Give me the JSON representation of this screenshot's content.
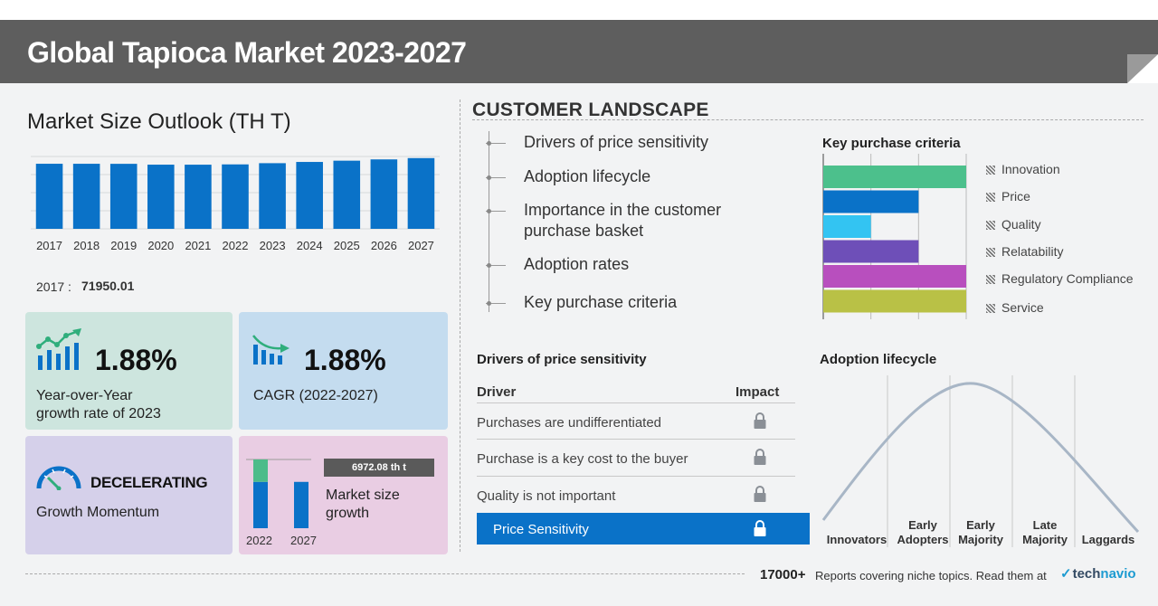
{
  "header": {
    "title": "Global Tapioca Market 2023-2027"
  },
  "market_size": {
    "title": "Market Size Outlook (TH T)",
    "base_year_label": "2017 :",
    "base_year_value": "71950.01"
  },
  "chart_data": [
    {
      "type": "bar",
      "title": "Market Size Outlook (TH T)",
      "categories": [
        "2017",
        "2018",
        "2019",
        "2020",
        "2021",
        "2022",
        "2023",
        "2024",
        "2025",
        "2026",
        "2027"
      ],
      "values": [
        71950.01,
        71930,
        71870,
        70950,
        70920,
        71250,
        72590,
        73960,
        75350,
        76770,
        78220
      ],
      "ylim": [
        0,
        80000
      ],
      "grid": true,
      "color": "#0a72c8"
    },
    {
      "type": "bar",
      "title": "Key purchase criteria",
      "orientation": "horizontal",
      "categories": [
        "Innovation",
        "Price",
        "Quality",
        "Relatability",
        "Regulatory Compliance",
        "Service"
      ],
      "values": [
        3,
        2,
        1,
        2,
        3,
        3
      ],
      "xlim": [
        0,
        3
      ],
      "colors": [
        "#4cc08c",
        "#0a72c8",
        "#33c4f2",
        "#6e4fb8",
        "#b84fbe",
        "#b9c146"
      ],
      "legend_position": "right"
    },
    {
      "type": "bar",
      "title": "Market size growth",
      "categories": [
        "2022",
        "2027"
      ],
      "values": [
        71250,
        78220
      ],
      "incremental_label": "6972.08 th t"
    }
  ],
  "kpis": {
    "yoy": {
      "value": "1.88%",
      "label_line1": "Year-over-Year",
      "label_line2": "growth rate of 2023"
    },
    "cagr": {
      "value": "1.88%",
      "label": "CAGR (2022-2027)"
    },
    "momentum": {
      "value": "DECELERATING",
      "label": "Growth Momentum"
    },
    "growth": {
      "badge": "6972.08 th t",
      "label_line1": "Market size",
      "label_line2": "growth",
      "year_start": "2022",
      "year_end": "2027"
    }
  },
  "customer_landscape": {
    "title": "CUSTOMER LANDSCAPE",
    "items": [
      {
        "line1": "Drivers of price sensitivity",
        "line2": ""
      },
      {
        "line1": "Adoption lifecycle",
        "line2": ""
      },
      {
        "line1": "Importance in the customer",
        "line2": "purchase basket"
      },
      {
        "line1": "Adoption rates",
        "line2": ""
      },
      {
        "line1": "Key purchase criteria",
        "line2": ""
      }
    ]
  },
  "key_purchase_criteria": {
    "title": "Key purchase criteria",
    "legend": [
      "Innovation",
      "Price",
      "Quality",
      "Relatability",
      "Regulatory Compliance",
      "Service"
    ]
  },
  "drivers": {
    "title": "Drivers of price sensitivity",
    "col_driver": "Driver",
    "col_impact": "Impact",
    "rows": [
      "Purchases are undifferentiated",
      "Purchase is a key cost to the buyer",
      "Quality is not important"
    ],
    "selected": "Price Sensitivity"
  },
  "adoption": {
    "title": "Adoption lifecycle",
    "stages": [
      {
        "line1": "",
        "line2": "Innovators"
      },
      {
        "line1": "Early",
        "line2": "Adopters"
      },
      {
        "line1": "Early",
        "line2": "Majority"
      },
      {
        "line1": "Late",
        "line2": "Majority"
      },
      {
        "line1": "",
        "line2": "Laggards"
      }
    ]
  },
  "footer": {
    "count": "17000+",
    "text": "Reports covering niche topics. Read them at",
    "brand_prefix": "tech",
    "brand_suffix": "navio"
  },
  "colors": {
    "header_bg": "#5e5e5e",
    "accent_blue": "#0a72c8",
    "yoy_card": "#cde5de",
    "cagr_card": "#c4dcef",
    "momentum_card": "#d5d0ea",
    "growth_card": "#e9cde3"
  }
}
